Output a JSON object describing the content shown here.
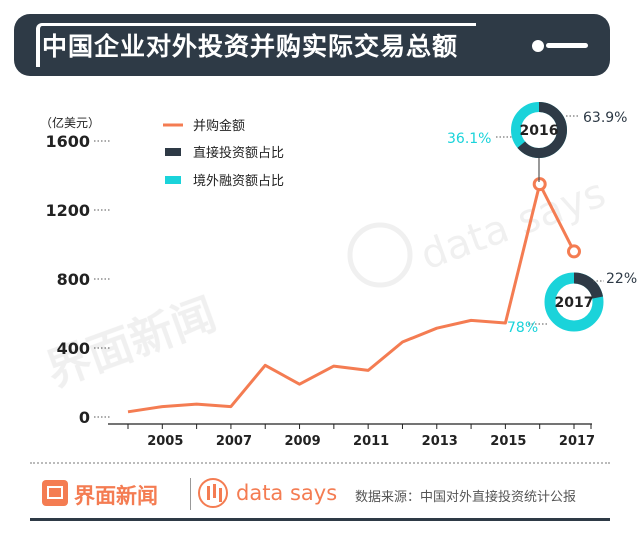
{
  "header": {
    "title": "中国企业对外投资并购实际交易总额"
  },
  "chart_data": {
    "type": "line",
    "title": "中国企业对外投资并购实际交易总额",
    "ylabel": "（亿美元）",
    "ylim": [
      0,
      1600
    ],
    "yticks": [
      0,
      400,
      800,
      1200,
      1600
    ],
    "xticks": [
      "2005",
      "2007",
      "2009",
      "2011",
      "2013",
      "2015",
      "2017"
    ],
    "grid": false,
    "legend_position": "top-left",
    "legend": [
      "并购金额",
      "直接投资额占比",
      "境外融资额占比"
    ],
    "series": [
      {
        "name": "并购金额",
        "x": [
          2004,
          2005,
          2006,
          2007,
          2008,
          2009,
          2010,
          2011,
          2012,
          2013,
          2014,
          2015,
          2016,
          2017
        ],
        "values": [
          30,
          60,
          75,
          60,
          300,
          190,
          295,
          270,
          435,
          515,
          560,
          545,
          1350,
          960
        ]
      }
    ],
    "donuts": [
      {
        "year_label": "2016",
        "x": 2016,
        "y": 1350,
        "direct_share": "63.9%",
        "overseas_share": "36.1%",
        "direct_fraction": 0.639
      },
      {
        "year_label": "2017",
        "x": 2017,
        "y": 960,
        "direct_share": "22%",
        "overseas_share": "78%",
        "direct_fraction": 0.22
      }
    ],
    "colors": {
      "line": "#f47c52",
      "direct": "#2e3a46",
      "overseas": "#1ad3da"
    }
  },
  "footer": {
    "brand": "界面新闻",
    "datasays": "data says",
    "source": "数据来源：中国对外直接投资统计公报"
  }
}
